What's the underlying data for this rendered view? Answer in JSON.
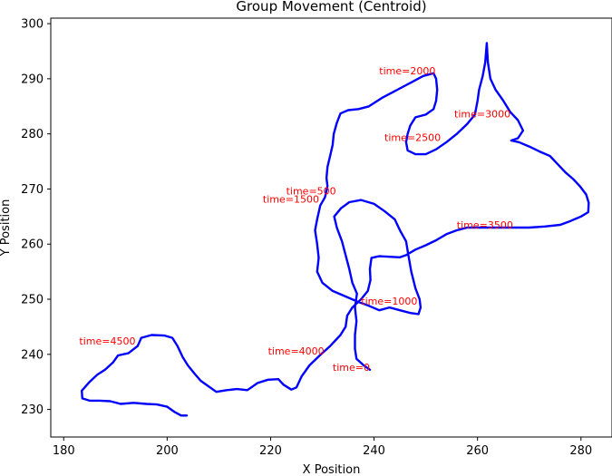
{
  "chart_data": {
    "type": "line",
    "title": "Group Movement (Centroid)",
    "xlabel": "X Position",
    "ylabel": "Y Position",
    "xlim": [
      177.5,
      286.0
    ],
    "ylim": [
      225.0,
      301.0
    ],
    "xticks": [
      180,
      200,
      220,
      240,
      260,
      280
    ],
    "yticks": [
      230,
      240,
      250,
      260,
      270,
      280,
      290,
      300
    ],
    "grid": false,
    "legend": "none",
    "series": [
      {
        "color": "#0000ff",
        "points": [
          [
            239.2,
            237.2
          ],
          [
            238.0,
            238.0
          ],
          [
            236.6,
            239.2
          ],
          [
            236.3,
            241.0
          ],
          [
            236.3,
            243.5
          ],
          [
            236.6,
            246.0
          ],
          [
            236.3,
            248.5
          ],
          [
            236.7,
            251.0
          ],
          [
            235.8,
            253.0
          ],
          [
            235.2,
            255.5
          ],
          [
            234.5,
            258.0
          ],
          [
            233.8,
            260.5
          ],
          [
            232.8,
            263.0
          ],
          [
            232.3,
            265.0
          ],
          [
            233.6,
            266.5
          ],
          [
            235.2,
            267.6
          ],
          [
            237.5,
            268.0
          ],
          [
            240.0,
            267.3
          ],
          [
            242.0,
            266.0
          ],
          [
            244.0,
            264.5
          ],
          [
            245.0,
            262.5
          ],
          [
            246.2,
            260.5
          ],
          [
            246.6,
            258.2
          ],
          [
            247.2,
            255.0
          ],
          [
            248.0,
            252.0
          ],
          [
            248.8,
            250.0
          ],
          [
            249.0,
            248.5
          ],
          [
            248.6,
            247.3
          ],
          [
            247.0,
            247.5
          ],
          [
            245.0,
            248.0
          ],
          [
            243.0,
            248.5
          ],
          [
            241.0,
            248.0
          ],
          [
            239.0,
            248.8
          ],
          [
            237.0,
            249.5
          ],
          [
            234.5,
            250.5
          ],
          [
            232.0,
            251.5
          ],
          [
            230.0,
            253.0
          ],
          [
            229.0,
            255.0
          ],
          [
            229.3,
            257.5
          ],
          [
            229.0,
            260.0
          ],
          [
            228.6,
            262.5
          ],
          [
            229.0,
            264.5
          ],
          [
            229.6,
            267.0
          ],
          [
            230.5,
            268.5
          ],
          [
            231.0,
            270.5
          ],
          [
            230.8,
            272.0
          ],
          [
            231.0,
            274.0
          ],
          [
            231.5,
            276.0
          ],
          [
            232.0,
            278.0
          ],
          [
            232.2,
            280.0
          ],
          [
            232.8,
            282.0
          ],
          [
            233.5,
            283.7
          ],
          [
            235.0,
            284.3
          ],
          [
            237.0,
            284.5
          ],
          [
            239.0,
            285.0
          ],
          [
            241.5,
            286.5
          ],
          [
            243.5,
            287.5
          ],
          [
            245.5,
            288.5
          ],
          [
            247.5,
            289.5
          ],
          [
            249.5,
            290.5
          ],
          [
            251.5,
            291.0
          ],
          [
            252.0,
            290.0
          ],
          [
            252.2,
            288.0
          ],
          [
            252.0,
            286.0
          ],
          [
            251.5,
            284.5
          ],
          [
            250.0,
            283.5
          ],
          [
            248.0,
            283.0
          ],
          [
            247.0,
            281.5
          ],
          [
            246.5,
            280.0
          ],
          [
            246.2,
            278.5
          ],
          [
            246.5,
            277.0
          ],
          [
            248.0,
            276.3
          ],
          [
            250.0,
            276.3
          ],
          [
            252.0,
            277.2
          ],
          [
            254.0,
            278.5
          ],
          [
            256.0,
            280.0
          ],
          [
            258.0,
            281.8
          ],
          [
            259.5,
            283.5
          ],
          [
            260.0,
            286.0
          ],
          [
            260.3,
            288.0
          ],
          [
            261.0,
            290.5
          ],
          [
            261.5,
            293.0
          ],
          [
            261.8,
            296.5
          ],
          [
            262.0,
            293.0
          ],
          [
            262.5,
            290.0
          ],
          [
            263.5,
            288.0
          ],
          [
            265.0,
            286.0
          ],
          [
            266.3,
            284.0
          ],
          [
            267.8,
            282.5
          ],
          [
            268.8,
            280.6
          ],
          [
            267.8,
            279.2
          ],
          [
            266.5,
            278.8
          ],
          [
            268.0,
            278.5
          ],
          [
            270.0,
            277.7
          ],
          [
            272.0,
            276.8
          ],
          [
            274.0,
            276.0
          ],
          [
            275.5,
            274.5
          ],
          [
            277.0,
            273.0
          ],
          [
            278.5,
            271.8
          ],
          [
            279.8,
            270.5
          ],
          [
            281.0,
            269.0
          ],
          [
            281.5,
            267.5
          ],
          [
            281.4,
            265.8
          ],
          [
            280.0,
            265.0
          ],
          [
            278.0,
            264.2
          ],
          [
            276.0,
            263.5
          ],
          [
            273.0,
            263.2
          ],
          [
            270.0,
            263.0
          ],
          [
            267.0,
            263.0
          ],
          [
            264.0,
            263.0
          ],
          [
            261.0,
            263.0
          ],
          [
            258.0,
            263.0
          ],
          [
            256.0,
            262.5
          ],
          [
            254.0,
            261.8
          ],
          [
            252.0,
            260.7
          ],
          [
            250.0,
            259.8
          ],
          [
            248.0,
            259.0
          ],
          [
            246.2,
            258.0
          ],
          [
            245.0,
            257.6
          ],
          [
            243.0,
            257.7
          ],
          [
            241.0,
            257.8
          ],
          [
            239.5,
            257.5
          ],
          [
            239.2,
            255.5
          ],
          [
            239.3,
            253.5
          ],
          [
            238.8,
            251.5
          ],
          [
            237.5,
            250.0
          ],
          [
            235.8,
            248.5
          ],
          [
            234.8,
            247.0
          ],
          [
            234.5,
            245.0
          ],
          [
            233.5,
            243.5
          ],
          [
            231.5,
            241.5
          ],
          [
            229.5,
            239.8
          ],
          [
            227.5,
            238.0
          ],
          [
            226.0,
            236.0
          ],
          [
            225.0,
            234.0
          ],
          [
            224.0,
            233.6
          ],
          [
            222.5,
            234.5
          ],
          [
            221.5,
            235.5
          ],
          [
            219.5,
            235.4
          ],
          [
            217.5,
            234.8
          ],
          [
            215.5,
            233.5
          ],
          [
            213.5,
            233.7
          ],
          [
            211.5,
            233.5
          ],
          [
            209.5,
            233.2
          ],
          [
            208.0,
            234.2
          ],
          [
            206.5,
            235.2
          ],
          [
            205.3,
            236.5
          ],
          [
            204.0,
            238.0
          ],
          [
            203.0,
            239.5
          ],
          [
            202.0,
            241.5
          ],
          [
            201.0,
            243.0
          ],
          [
            199.5,
            243.4
          ],
          [
            197.0,
            243.5
          ],
          [
            195.0,
            243.0
          ],
          [
            194.3,
            241.5
          ],
          [
            192.5,
            240.2
          ],
          [
            190.5,
            239.8
          ],
          [
            189.5,
            238.5
          ],
          [
            188.0,
            237.2
          ],
          [
            186.5,
            236.3
          ],
          [
            185.0,
            235.0
          ],
          [
            183.5,
            233.4
          ],
          [
            183.6,
            232.0
          ],
          [
            185.0,
            231.6
          ],
          [
            187.0,
            231.6
          ],
          [
            189.0,
            231.5
          ],
          [
            191.0,
            231.0
          ],
          [
            193.5,
            231.2
          ],
          [
            196.0,
            231.0
          ],
          [
            198.0,
            230.9
          ],
          [
            200.0,
            230.5
          ],
          [
            201.5,
            229.5
          ],
          [
            202.7,
            228.9
          ],
          [
            203.8,
            228.9
          ]
        ]
      }
    ],
    "annotations": [
      {
        "text": "time=0",
        "x": 232.0,
        "y": 237.0
      },
      {
        "text": "time=500",
        "x": 223.0,
        "y": 269.0
      },
      {
        "text": "time=1000",
        "x": 237.5,
        "y": 249.0
      },
      {
        "text": "time=1500",
        "x": 218.5,
        "y": 267.5
      },
      {
        "text": "time=2000",
        "x": 241.0,
        "y": 290.8
      },
      {
        "text": "time=2500",
        "x": 242.0,
        "y": 278.7
      },
      {
        "text": "time=3000",
        "x": 255.5,
        "y": 283.0
      },
      {
        "text": "time=3500",
        "x": 256.0,
        "y": 262.8
      },
      {
        "text": "time=4000",
        "x": 219.5,
        "y": 240.0
      },
      {
        "text": "time=4500",
        "x": 183.0,
        "y": 241.8
      }
    ],
    "annotation_color": "#ff0000"
  }
}
